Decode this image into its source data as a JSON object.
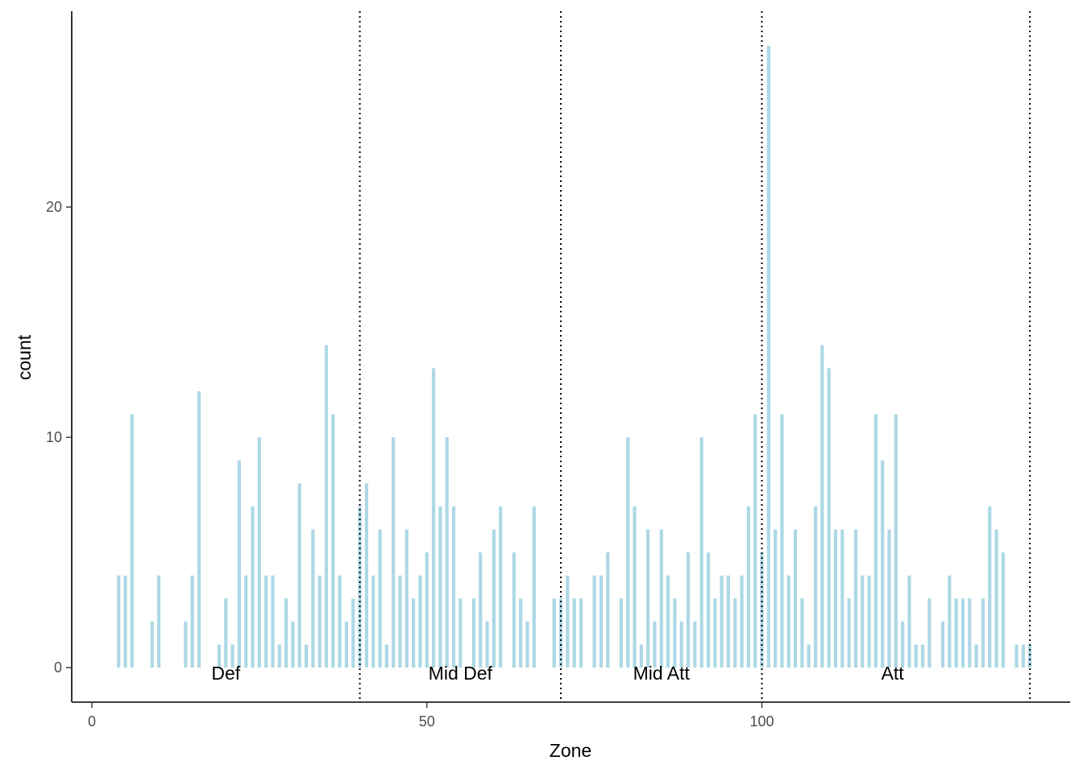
{
  "chart_data": {
    "type": "bar",
    "xlabel": "Zone",
    "ylabel": "count",
    "xlim": [
      -3,
      146
    ],
    "ylim": [
      -1.5,
      28.5
    ],
    "x_ticks": [
      0,
      50,
      100
    ],
    "y_ticks": [
      0,
      10,
      20
    ],
    "x_tick_labels": [
      "0",
      "50",
      "100"
    ],
    "y_tick_labels": [
      "0",
      "10",
      "20"
    ],
    "grid": false,
    "bar_color": "#add8e6",
    "divider_color": "#000000",
    "dividers": [
      40,
      70,
      100,
      140
    ],
    "zone_labels": [
      {
        "text": "Def",
        "x": 20
      },
      {
        "text": "Mid Def",
        "x": 55
      },
      {
        "text": "Mid Att",
        "x": 85
      },
      {
        "text": "Att",
        "x": 119.5
      }
    ],
    "bins": [
      {
        "x": 4,
        "count": 4
      },
      {
        "x": 5,
        "count": 4
      },
      {
        "x": 6,
        "count": 11
      },
      {
        "x": 9,
        "count": 2
      },
      {
        "x": 10,
        "count": 4
      },
      {
        "x": 14,
        "count": 2
      },
      {
        "x": 15,
        "count": 4
      },
      {
        "x": 16,
        "count": 12
      },
      {
        "x": 19,
        "count": 1
      },
      {
        "x": 20,
        "count": 3
      },
      {
        "x": 21,
        "count": 1
      },
      {
        "x": 22,
        "count": 9
      },
      {
        "x": 23,
        "count": 4
      },
      {
        "x": 24,
        "count": 7
      },
      {
        "x": 25,
        "count": 10
      },
      {
        "x": 26,
        "count": 4
      },
      {
        "x": 27,
        "count": 4
      },
      {
        "x": 28,
        "count": 1
      },
      {
        "x": 29,
        "count": 3
      },
      {
        "x": 30,
        "count": 2
      },
      {
        "x": 31,
        "count": 8
      },
      {
        "x": 32,
        "count": 1
      },
      {
        "x": 33,
        "count": 6
      },
      {
        "x": 34,
        "count": 4
      },
      {
        "x": 35,
        "count": 14
      },
      {
        "x": 36,
        "count": 11
      },
      {
        "x": 37,
        "count": 4
      },
      {
        "x": 38,
        "count": 2
      },
      {
        "x": 39,
        "count": 3
      },
      {
        "x": 40,
        "count": 7
      },
      {
        "x": 41,
        "count": 8
      },
      {
        "x": 42,
        "count": 4
      },
      {
        "x": 43,
        "count": 6
      },
      {
        "x": 44,
        "count": 1
      },
      {
        "x": 45,
        "count": 10
      },
      {
        "x": 46,
        "count": 4
      },
      {
        "x": 47,
        "count": 6
      },
      {
        "x": 48,
        "count": 3
      },
      {
        "x": 49,
        "count": 4
      },
      {
        "x": 50,
        "count": 5
      },
      {
        "x": 51,
        "count": 13
      },
      {
        "x": 52,
        "count": 7
      },
      {
        "x": 53,
        "count": 10
      },
      {
        "x": 54,
        "count": 7
      },
      {
        "x": 55,
        "count": 3
      },
      {
        "x": 57,
        "count": 3
      },
      {
        "x": 58,
        "count": 5
      },
      {
        "x": 59,
        "count": 2
      },
      {
        "x": 60,
        "count": 6
      },
      {
        "x": 61,
        "count": 7
      },
      {
        "x": 63,
        "count": 5
      },
      {
        "x": 64,
        "count": 3
      },
      {
        "x": 65,
        "count": 2
      },
      {
        "x": 66,
        "count": 7
      },
      {
        "x": 69,
        "count": 3
      },
      {
        "x": 70,
        "count": 3
      },
      {
        "x": 71,
        "count": 4
      },
      {
        "x": 72,
        "count": 3
      },
      {
        "x": 73,
        "count": 3
      },
      {
        "x": 75,
        "count": 4
      },
      {
        "x": 76,
        "count": 4
      },
      {
        "x": 77,
        "count": 5
      },
      {
        "x": 79,
        "count": 3
      },
      {
        "x": 80,
        "count": 10
      },
      {
        "x": 81,
        "count": 7
      },
      {
        "x": 82,
        "count": 1
      },
      {
        "x": 83,
        "count": 6
      },
      {
        "x": 84,
        "count": 2
      },
      {
        "x": 85,
        "count": 6
      },
      {
        "x": 86,
        "count": 4
      },
      {
        "x": 87,
        "count": 3
      },
      {
        "x": 88,
        "count": 2
      },
      {
        "x": 89,
        "count": 5
      },
      {
        "x": 90,
        "count": 2
      },
      {
        "x": 91,
        "count": 10
      },
      {
        "x": 92,
        "count": 5
      },
      {
        "x": 93,
        "count": 3
      },
      {
        "x": 94,
        "count": 4
      },
      {
        "x": 95,
        "count": 4
      },
      {
        "x": 96,
        "count": 3
      },
      {
        "x": 97,
        "count": 4
      },
      {
        "x": 98,
        "count": 7
      },
      {
        "x": 99,
        "count": 11
      },
      {
        "x": 100,
        "count": 5
      },
      {
        "x": 101,
        "count": 27
      },
      {
        "x": 102,
        "count": 6
      },
      {
        "x": 103,
        "count": 11
      },
      {
        "x": 104,
        "count": 4
      },
      {
        "x": 105,
        "count": 6
      },
      {
        "x": 106,
        "count": 3
      },
      {
        "x": 107,
        "count": 1
      },
      {
        "x": 108,
        "count": 7
      },
      {
        "x": 109,
        "count": 14
      },
      {
        "x": 110,
        "count": 13
      },
      {
        "x": 111,
        "count": 6
      },
      {
        "x": 112,
        "count": 6
      },
      {
        "x": 113,
        "count": 3
      },
      {
        "x": 114,
        "count": 6
      },
      {
        "x": 115,
        "count": 4
      },
      {
        "x": 116,
        "count": 4
      },
      {
        "x": 117,
        "count": 11
      },
      {
        "x": 118,
        "count": 9
      },
      {
        "x": 119,
        "count": 6
      },
      {
        "x": 120,
        "count": 11
      },
      {
        "x": 121,
        "count": 2
      },
      {
        "x": 122,
        "count": 4
      },
      {
        "x": 123,
        "count": 1
      },
      {
        "x": 124,
        "count": 1
      },
      {
        "x": 125,
        "count": 3
      },
      {
        "x": 127,
        "count": 2
      },
      {
        "x": 128,
        "count": 4
      },
      {
        "x": 129,
        "count": 3
      },
      {
        "x": 130,
        "count": 3
      },
      {
        "x": 131,
        "count": 3
      },
      {
        "x": 132,
        "count": 1
      },
      {
        "x": 133,
        "count": 3
      },
      {
        "x": 134,
        "count": 7
      },
      {
        "x": 135,
        "count": 6
      },
      {
        "x": 136,
        "count": 5
      },
      {
        "x": 138,
        "count": 1
      },
      {
        "x": 139,
        "count": 1
      },
      {
        "x": 140,
        "count": 1
      }
    ]
  }
}
